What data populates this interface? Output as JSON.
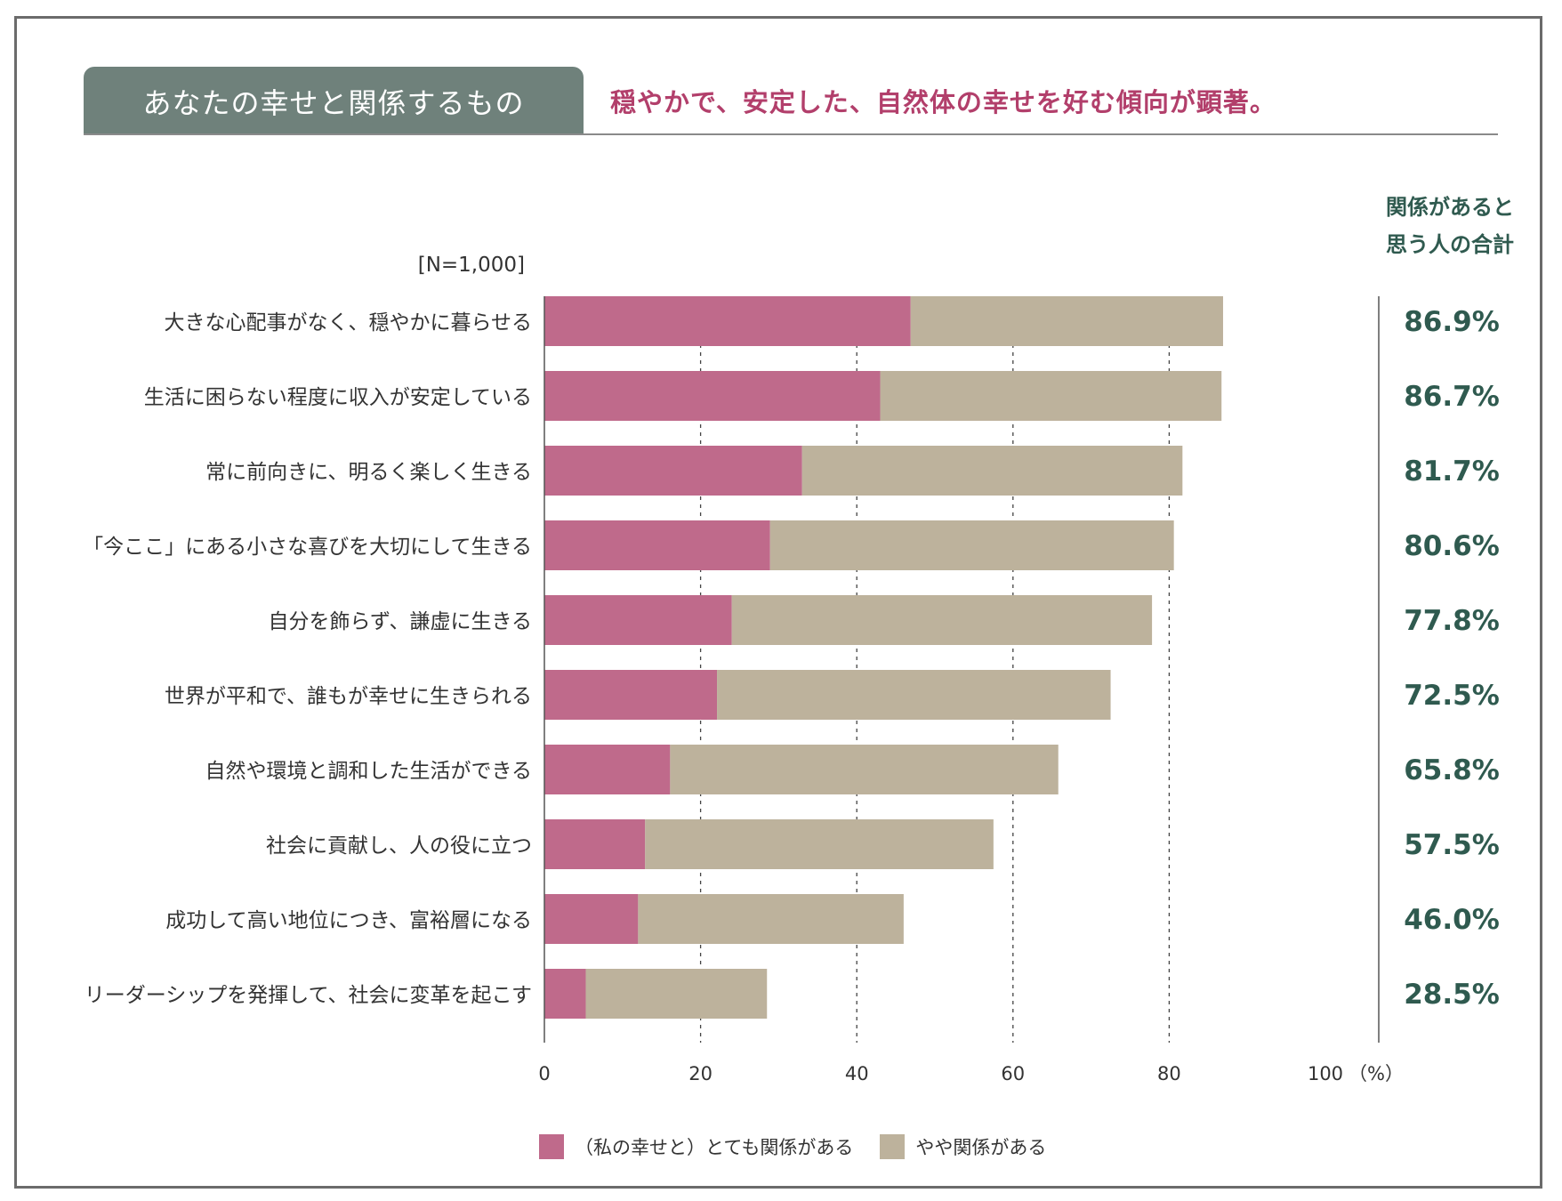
{
  "header": {
    "title": "あなたの幸せと関係するもの",
    "subtitle": "穏やかで、安定した、自然体の幸せを好む傾向が顕著。"
  },
  "total_header": {
    "line1": "関係があると",
    "line2": "思う人の合計"
  },
  "n_label": "[N=1,000]",
  "colors": {
    "very": "#bf6a8b",
    "somewhat": "#bdb29c",
    "accent_text": "#b23f6b",
    "total_text": "#2f5a4f",
    "tab_bg": "#6f817b"
  },
  "chart_data": {
    "type": "bar",
    "orientation": "horizontal",
    "stacked": true,
    "categories": [
      "大きな心配事がなく、穏やかに暮らせる",
      "生活に困らない程度に収入が安定している",
      "常に前向きに、明るく楽しく生きる",
      "「今ここ」にある小さな喜びを大切にして生きる",
      "自分を飾らず、謙虚に生きる",
      "世界が平和で、誰もが幸せに生きられる",
      "自然や環境と調和した生活ができる",
      "社会に貢献し、人の役に立つ",
      "成功して高い地位につき、富裕層になる",
      "リーダーシップを発揮して、社会に変革を起こす"
    ],
    "series": [
      {
        "name": "（私の幸せと）とても関係がある",
        "values": [
          46.9,
          43.0,
          33.0,
          28.9,
          24.0,
          22.1,
          16.1,
          12.9,
          12.0,
          5.3
        ]
      },
      {
        "name": "やや関係がある",
        "values": [
          40.0,
          43.7,
          48.7,
          51.7,
          53.8,
          50.4,
          49.7,
          44.6,
          34.0,
          23.2
        ]
      }
    ],
    "totals": [
      "86.9%",
      "86.7%",
      "81.7%",
      "80.6%",
      "77.8%",
      "72.5%",
      "65.8%",
      "57.5%",
      "46.0%",
      "28.5%"
    ],
    "x_ticks": [
      "0",
      "20",
      "40",
      "60",
      "80",
      "100"
    ],
    "x_unit": "（%）",
    "xlim": [
      0,
      100
    ],
    "grid": "dashed vertical lines at 20, 40, 60, 80",
    "legend_position": "bottom-center"
  }
}
